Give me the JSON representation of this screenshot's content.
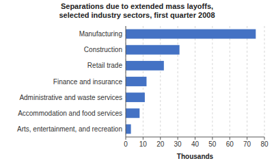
{
  "chart_data": {
    "type": "bar",
    "orientation": "horizontal",
    "title": "Separations due to extended mass layoffs,\nselected industry sectors, first quarter 2008",
    "categories": [
      "Arts, entertainment, and recreation",
      "Accommodation and food services",
      "Administrative and waste services",
      "Finance and insurance",
      "Retail trade",
      "Construction",
      "Manufacturing"
    ],
    "values": [
      3,
      8,
      11,
      12,
      22,
      31,
      75
    ],
    "color": "#4472c4",
    "xlabel": "Thousands",
    "xlim": [
      0,
      80
    ],
    "xticks": [
      0,
      10,
      20,
      30,
      40,
      50,
      60,
      70,
      80
    ],
    "grid": true
  }
}
